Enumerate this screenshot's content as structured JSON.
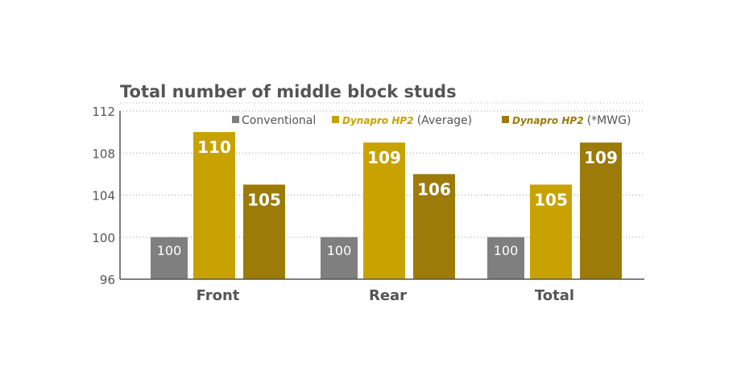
{
  "chart_data": {
    "type": "bar",
    "title": "Total number of middle block studs",
    "categories": [
      "Front",
      "Rear",
      "Total"
    ],
    "series": [
      {
        "name": "Conventional",
        "name_suffix": "",
        "values": [
          100,
          100,
          100
        ],
        "color": "#7f7f80"
      },
      {
        "name": "Dynapro HP2",
        "name_suffix": "(Average)",
        "values": [
          110,
          109,
          105
        ],
        "color": "#c8a200"
      },
      {
        "name": "Dynapro HP2",
        "name_suffix": "(*MWG)",
        "values": [
          105,
          106,
          109
        ],
        "color": "#9c7b09"
      }
    ],
    "ylim": [
      96,
      112
    ],
    "yticks": [
      "96",
      "100",
      "104",
      "108",
      "112"
    ],
    "ytick_values": [
      96,
      100,
      104,
      108,
      112
    ],
    "xlabel": "",
    "ylabel": "",
    "grid": "horizontal dotted",
    "legend": "top-right"
  }
}
